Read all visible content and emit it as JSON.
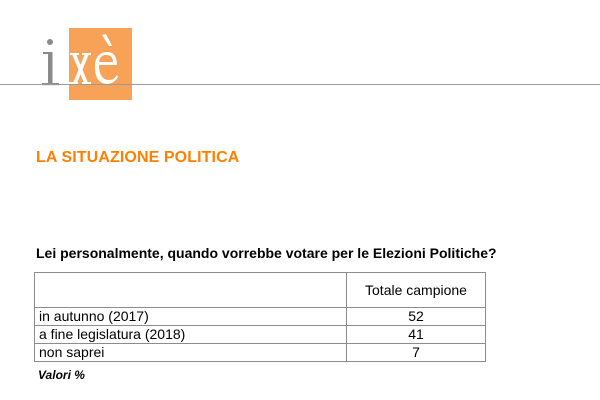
{
  "brand": {
    "logo_text": "ixè",
    "accent_color": "#f7a257",
    "title_color": "#ff7f00"
  },
  "section": {
    "title": "LA SITUAZIONE POLITICA"
  },
  "survey": {
    "question": "Lei personalmente, quando vorrebbe votare per le Elezioni Politiche?",
    "column_header": "Totale campione",
    "rows": [
      {
        "label": "in autunno (2017)",
        "value": "52"
      },
      {
        "label": "a fine legislatura (2018)",
        "value": "41"
      },
      {
        "label": "non saprei",
        "value": "7"
      }
    ],
    "note": "Valori %"
  }
}
